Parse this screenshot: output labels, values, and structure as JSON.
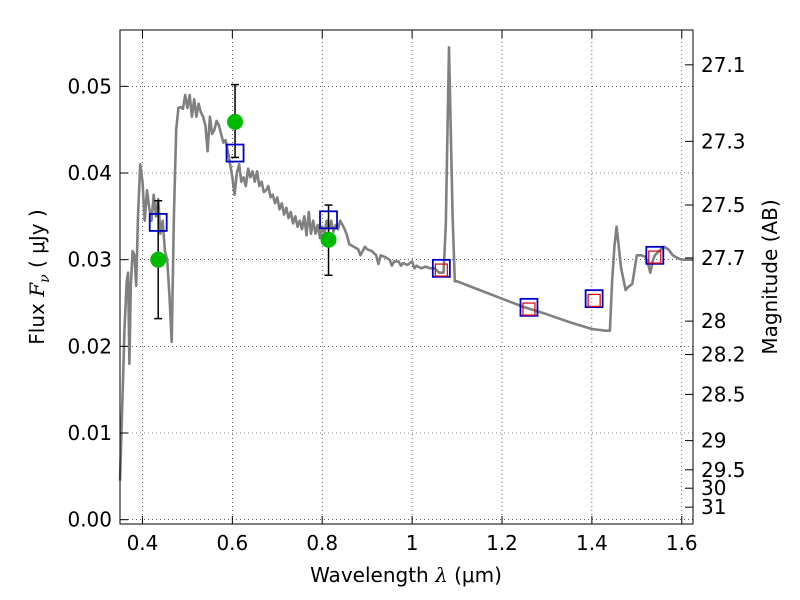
{
  "chart_data": {
    "type": "scatter",
    "xlabel": {
      "prefix": "Wavelength  ",
      "symbol": "λ",
      "unit": " (μm)"
    },
    "ylabel": {
      "prefix": "Flux  ",
      "symbol": "F",
      "subscript": "ν",
      "unit": "  ( μJy )"
    },
    "y2label": "Magnitude (AB)",
    "xlim": [
      0.35,
      1.625
    ],
    "ylim": [
      -0.0005,
      0.0565
    ],
    "grid": true,
    "x_ticks": [
      {
        "value": 0.4,
        "label": "0.4"
      },
      {
        "value": 0.6,
        "label": "0.6"
      },
      {
        "value": 0.8,
        "label": "0.8"
      },
      {
        "value": 1.0,
        "label": "1"
      },
      {
        "value": 1.2,
        "label": "1.2"
      },
      {
        "value": 1.4,
        "label": "1.4"
      },
      {
        "value": 1.6,
        "label": "1.6"
      }
    ],
    "y_ticks": [
      {
        "value": 0.0,
        "label": "0.00"
      },
      {
        "value": 0.01,
        "label": "0.01"
      },
      {
        "value": 0.02,
        "label": "0.02"
      },
      {
        "value": 0.03,
        "label": "0.03"
      },
      {
        "value": 0.04,
        "label": "0.04"
      },
      {
        "value": 0.05,
        "label": "0.05"
      }
    ],
    "mag_ticks": [
      "27.1",
      "27.3",
      "27.5",
      "27.7",
      "28",
      "28.2",
      "28.5",
      "29",
      "29.5",
      "30",
      "31"
    ],
    "series": [
      {
        "kind": "line",
        "color": "#808080",
        "points": [
          [
            0.35,
            0.0045
          ],
          [
            0.355,
            0.013
          ],
          [
            0.36,
            0.022
          ],
          [
            0.365,
            0.0275
          ],
          [
            0.368,
            0.0285
          ],
          [
            0.371,
            0.018
          ],
          [
            0.374,
            0.027
          ],
          [
            0.378,
            0.031
          ],
          [
            0.382,
            0.0305
          ],
          [
            0.386,
            0.027
          ],
          [
            0.39,
            0.035
          ],
          [
            0.395,
            0.041
          ],
          [
            0.4,
            0.039
          ],
          [
            0.405,
            0.0345
          ],
          [
            0.41,
            0.038
          ],
          [
            0.415,
            0.036
          ],
          [
            0.42,
            0.0345
          ],
          [
            0.425,
            0.0375
          ],
          [
            0.43,
            0.035
          ],
          [
            0.435,
            0.037
          ],
          [
            0.44,
            0.033
          ],
          [
            0.445,
            0.0345
          ],
          [
            0.45,
            0.031
          ],
          [
            0.455,
            0.03
          ],
          [
            0.46,
            0.026
          ],
          [
            0.465,
            0.0205
          ],
          [
            0.47,
            0.035
          ],
          [
            0.475,
            0.045
          ],
          [
            0.48,
            0.0475
          ],
          [
            0.485,
            0.0476
          ],
          [
            0.49,
            0.0474
          ],
          [
            0.495,
            0.049
          ],
          [
            0.5,
            0.0475
          ],
          [
            0.505,
            0.049
          ],
          [
            0.51,
            0.0465
          ],
          [
            0.515,
            0.0485
          ],
          [
            0.52,
            0.0465
          ],
          [
            0.525,
            0.048
          ],
          [
            0.53,
            0.047
          ],
          [
            0.535,
            0.0465
          ],
          [
            0.54,
            0.0455
          ],
          [
            0.545,
            0.0425
          ],
          [
            0.55,
            0.0465
          ],
          [
            0.555,
            0.0445
          ],
          [
            0.56,
            0.045
          ],
          [
            0.565,
            0.046
          ],
          [
            0.57,
            0.0455
          ],
          [
            0.575,
            0.0445
          ],
          [
            0.58,
            0.0435
          ],
          [
            0.585,
            0.0438
          ],
          [
            0.59,
            0.0425
          ],
          [
            0.595,
            0.041
          ],
          [
            0.6,
            0.0395
          ],
          [
            0.605,
            0.0375
          ],
          [
            0.61,
            0.04
          ],
          [
            0.615,
            0.041
          ],
          [
            0.62,
            0.039
          ],
          [
            0.625,
            0.0395
          ],
          [
            0.63,
            0.0385
          ],
          [
            0.635,
            0.0405
          ],
          [
            0.64,
            0.0395
          ],
          [
            0.645,
            0.0402
          ],
          [
            0.65,
            0.039
          ],
          [
            0.655,
            0.0402
          ],
          [
            0.66,
            0.0385
          ],
          [
            0.665,
            0.039
          ],
          [
            0.67,
            0.0378
          ],
          [
            0.675,
            0.038
          ],
          [
            0.68,
            0.0385
          ],
          [
            0.685,
            0.0372
          ],
          [
            0.69,
            0.0375
          ],
          [
            0.695,
            0.0365
          ],
          [
            0.7,
            0.0372
          ],
          [
            0.705,
            0.0358
          ],
          [
            0.71,
            0.0365
          ],
          [
            0.715,
            0.0352
          ],
          [
            0.72,
            0.036
          ],
          [
            0.725,
            0.0348
          ],
          [
            0.73,
            0.0355
          ],
          [
            0.735,
            0.0342
          ],
          [
            0.74,
            0.035
          ],
          [
            0.745,
            0.0338
          ],
          [
            0.75,
            0.0345
          ],
          [
            0.755,
            0.0335
          ],
          [
            0.76,
            0.035
          ],
          [
            0.765,
            0.0328
          ],
          [
            0.77,
            0.0355
          ],
          [
            0.775,
            0.033
          ],
          [
            0.78,
            0.0345
          ],
          [
            0.785,
            0.033
          ],
          [
            0.79,
            0.034
          ],
          [
            0.795,
            0.0325
          ],
          [
            0.8,
            0.0338
          ],
          [
            0.805,
            0.033
          ],
          [
            0.81,
            0.0345
          ],
          [
            0.815,
            0.0335
          ],
          [
            0.82,
            0.0345
          ],
          [
            0.825,
            0.0332
          ],
          [
            0.83,
            0.034
          ],
          [
            0.835,
            0.0335
          ],
          [
            0.84,
            0.0345
          ],
          [
            0.845,
            0.034
          ],
          [
            0.85,
            0.0335
          ],
          [
            0.855,
            0.0328
          ],
          [
            0.86,
            0.0318
          ],
          [
            0.87,
            0.0315
          ],
          [
            0.88,
            0.0312
          ],
          [
            0.885,
            0.0305
          ],
          [
            0.89,
            0.031
          ],
          [
            0.895,
            0.0315
          ],
          [
            0.9,
            0.0312
          ],
          [
            0.91,
            0.031
          ],
          [
            0.92,
            0.0305
          ],
          [
            0.925,
            0.0295
          ],
          [
            0.93,
            0.0305
          ],
          [
            0.94,
            0.0303
          ],
          [
            0.95,
            0.03
          ],
          [
            0.955,
            0.0293
          ],
          [
            0.96,
            0.0298
          ],
          [
            0.97,
            0.0298
          ],
          [
            0.975,
            0.0293
          ],
          [
            0.98,
            0.0296
          ],
          [
            0.99,
            0.0294
          ],
          [
            1.0,
            0.0298
          ],
          [
            1.005,
            0.029
          ],
          [
            1.01,
            0.0293
          ],
          [
            1.02,
            0.029
          ],
          [
            1.03,
            0.0292
          ],
          [
            1.04,
            0.029
          ],
          [
            1.05,
            0.029
          ],
          [
            1.06,
            0.0285
          ],
          [
            1.07,
            0.0285
          ],
          [
            1.075,
            0.034
          ],
          [
            1.082,
            0.0545
          ],
          [
            1.09,
            0.035
          ],
          [
            1.095,
            0.0275
          ],
          [
            1.1,
            0.0275
          ],
          [
            1.15,
            0.0265
          ],
          [
            1.2,
            0.0255
          ],
          [
            1.25,
            0.0245
          ],
          [
            1.3,
            0.0237
          ],
          [
            1.35,
            0.0228
          ],
          [
            1.4,
            0.022
          ],
          [
            1.43,
            0.0218
          ],
          [
            1.44,
            0.0218
          ],
          [
            1.445,
            0.0275
          ],
          [
            1.45,
            0.0315
          ],
          [
            1.455,
            0.0338
          ],
          [
            1.46,
            0.0315
          ],
          [
            1.465,
            0.029
          ],
          [
            1.47,
            0.0278
          ],
          [
            1.475,
            0.0265
          ],
          [
            1.48,
            0.0268
          ],
          [
            1.49,
            0.0272
          ],
          [
            1.5,
            0.0305
          ],
          [
            1.51,
            0.0305
          ],
          [
            1.52,
            0.0303
          ],
          [
            1.525,
            0.0295
          ],
          [
            1.53,
            0.0285
          ],
          [
            1.535,
            0.0298
          ],
          [
            1.54,
            0.0305
          ],
          [
            1.55,
            0.031
          ],
          [
            1.56,
            0.0315
          ],
          [
            1.57,
            0.0312
          ],
          [
            1.58,
            0.0305
          ],
          [
            1.59,
            0.0302
          ],
          [
            1.6,
            0.03
          ],
          [
            1.625,
            0.03
          ]
        ]
      },
      {
        "kind": "points-errorbar",
        "marker": "circle",
        "color": "#00bb00",
        "points": [
          {
            "x": 0.435,
            "y": 0.03,
            "yerr_low": 0.0232,
            "yerr_high": 0.0368
          },
          {
            "x": 0.606,
            "y": 0.0459,
            "yerr_low": 0.0418,
            "yerr_high": 0.0502
          },
          {
            "x": 0.814,
            "y": 0.0323,
            "yerr_low": 0.0282,
            "yerr_high": 0.0363
          }
        ]
      },
      {
        "kind": "points",
        "marker": "square",
        "color": "#0000cc",
        "points": [
          [
            0.435,
            0.0343
          ],
          [
            0.606,
            0.0423
          ],
          [
            0.814,
            0.0346
          ],
          [
            1.065,
            0.029
          ],
          [
            1.26,
            0.0245
          ],
          [
            1.405,
            0.0255
          ],
          [
            1.54,
            0.0305
          ]
        ]
      },
      {
        "kind": "points",
        "marker": "square-small",
        "color": "#dd0000",
        "points": [
          [
            1.065,
            0.0288
          ],
          [
            1.26,
            0.0243
          ],
          [
            1.405,
            0.0253
          ],
          [
            1.54,
            0.0303
          ]
        ]
      }
    ]
  }
}
